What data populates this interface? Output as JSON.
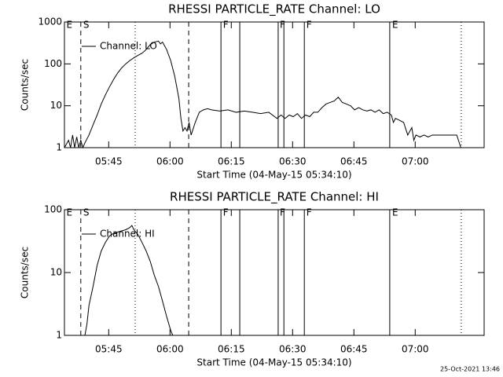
{
  "footer": "25-Oct-2021 13:46",
  "chart_data": [
    {
      "type": "line",
      "title": "RHESSI PARTICLE_RATE Channel: LO",
      "xlabel": "Start Time (04-May-15 05:34:10)",
      "ylabel": "Counts/sec",
      "log_y": true,
      "xlim": [
        0,
        102.7
      ],
      "ylim": [
        1,
        1000
      ],
      "yticks": [
        1,
        10,
        100,
        1000
      ],
      "xticks": [
        {
          "value": 10.83,
          "label": "05:45"
        },
        {
          "value": 25.83,
          "label": "06:00"
        },
        {
          "value": 40.83,
          "label": "06:15"
        },
        {
          "value": 55.83,
          "label": "06:30"
        },
        {
          "value": 70.83,
          "label": "06:45"
        },
        {
          "value": 85.83,
          "label": "07:00"
        }
      ],
      "markers": [
        {
          "x": 4.0,
          "style": "dashed"
        },
        {
          "x": 30.4,
          "style": "dashed"
        },
        {
          "x": 17.3,
          "style": "dotted"
        },
        {
          "x": 97.1,
          "style": "dotted"
        },
        {
          "x": 38.3,
          "style": "solid"
        },
        {
          "x": 42.9,
          "style": "solid"
        },
        {
          "x": 52.3,
          "style": "solid"
        },
        {
          "x": 53.7,
          "style": "solid"
        },
        {
          "x": 58.7,
          "style": "solid"
        },
        {
          "x": 79.6,
          "style": "solid"
        }
      ],
      "flags": [
        {
          "label": "E",
          "x": 0.3
        },
        {
          "label": "S",
          "x": 4.4
        },
        {
          "label": "F",
          "x": 38.6
        },
        {
          "label": "F",
          "x": 52.5
        },
        {
          "label": "F",
          "x": 59.0
        },
        {
          "label": "E",
          "x": 80.0
        }
      ],
      "x": [
        0,
        1,
        1.5,
        2,
        2.5,
        3,
        3.5,
        4,
        4.5,
        5,
        6,
        7,
        8,
        9,
        10,
        11,
        12,
        13,
        14,
        15,
        16,
        17,
        18,
        19,
        20,
        21,
        22,
        23,
        23.5,
        24,
        25,
        26,
        27,
        28,
        28.5,
        29,
        29.5,
        30,
        30.5,
        31,
        32,
        33,
        34,
        35,
        36,
        38,
        40,
        42,
        44,
        46,
        48,
        50,
        52,
        53,
        54,
        55,
        56,
        57,
        58,
        59,
        60,
        61,
        62,
        63,
        64,
        65,
        66,
        67,
        68,
        69,
        70,
        71,
        72,
        73,
        74,
        75,
        76,
        77,
        78,
        79,
        80,
        80.5,
        81,
        82,
        83,
        84,
        85,
        85.5,
        86,
        87,
        88,
        89,
        90,
        92,
        94,
        96,
        97,
        97.5
      ],
      "series": [
        {
          "name": "Channel: LO",
          "color": "#000000",
          "values": [
            1,
            1.5,
            1,
            2,
            1,
            1.8,
            1,
            1.5,
            1,
            1.3,
            2,
            3.5,
            6,
            11,
            18,
            28,
            42,
            60,
            80,
            100,
            120,
            140,
            160,
            180,
            220,
            290,
            330,
            350,
            300,
            330,
            220,
            120,
            50,
            15,
            5,
            2.5,
            3,
            2.5,
            4,
            2,
            4,
            7,
            8,
            8.5,
            8,
            7.5,
            8,
            7,
            7.5,
            7,
            6.5,
            7,
            5,
            6,
            5,
            6,
            5.5,
            6.5,
            5,
            6,
            5.5,
            7,
            7,
            9,
            11,
            12,
            13,
            16,
            12,
            11,
            10,
            8,
            9,
            8,
            7.5,
            8,
            7,
            8,
            6.5,
            7,
            6,
            4,
            5,
            4.5,
            4,
            2,
            3,
            1.5,
            2,
            1.8,
            2,
            1.8,
            2,
            2,
            2,
            2,
            1,
            1
          ]
        }
      ]
    },
    {
      "type": "line",
      "title": "RHESSI PARTICLE_RATE Channel: HI",
      "xlabel": "Start Time (04-May-15 05:34:10)",
      "ylabel": "Counts/sec",
      "log_y": true,
      "xlim": [
        0,
        102.7
      ],
      "ylim": [
        1,
        100
      ],
      "yticks": [
        1,
        10,
        100
      ],
      "xticks": [
        {
          "value": 10.83,
          "label": "05:45"
        },
        {
          "value": 25.83,
          "label": "06:00"
        },
        {
          "value": 40.83,
          "label": "06:15"
        },
        {
          "value": 55.83,
          "label": "06:30"
        },
        {
          "value": 70.83,
          "label": "06:45"
        },
        {
          "value": 85.83,
          "label": "07:00"
        }
      ],
      "markers": [
        {
          "x": 4.0,
          "style": "dashed"
        },
        {
          "x": 30.4,
          "style": "dashed"
        },
        {
          "x": 17.3,
          "style": "dotted"
        },
        {
          "x": 97.1,
          "style": "dotted"
        },
        {
          "x": 38.3,
          "style": "solid"
        },
        {
          "x": 42.9,
          "style": "solid"
        },
        {
          "x": 52.3,
          "style": "solid"
        },
        {
          "x": 53.7,
          "style": "solid"
        },
        {
          "x": 58.7,
          "style": "solid"
        },
        {
          "x": 79.6,
          "style": "solid"
        }
      ],
      "flags": [
        {
          "label": "E",
          "x": 0.3
        },
        {
          "label": "S",
          "x": 4.4
        },
        {
          "label": "F",
          "x": 38.6
        },
        {
          "label": "F",
          "x": 52.5
        },
        {
          "label": "F",
          "x": 59.0
        },
        {
          "label": "E",
          "x": 80.0
        }
      ],
      "x": [
        5,
        5.5,
        6,
        7,
        8,
        9,
        10,
        11,
        12,
        13,
        14,
        15,
        16,
        16.5,
        17,
        18,
        19,
        20,
        21,
        22,
        23,
        24,
        25,
        26,
        26.5
      ],
      "series": [
        {
          "name": "Channel: HI",
          "color": "#000000",
          "values": [
            1,
            1.5,
            3,
            6,
            13,
            22,
            30,
            38,
            42,
            44,
            46,
            48,
            52,
            56,
            48,
            40,
            30,
            22,
            15,
            9,
            6,
            3.5,
            2,
            1.2,
            1
          ]
        }
      ]
    }
  ]
}
